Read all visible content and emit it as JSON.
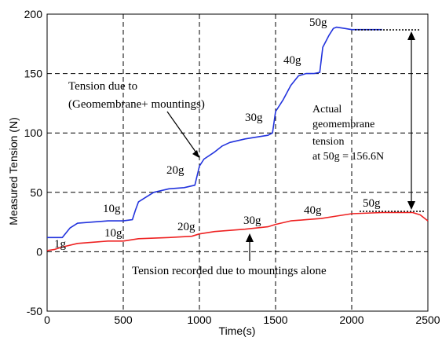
{
  "chart_data": {
    "type": "line",
    "xlabel": "Time(s)",
    "ylabel": "Measured Tension (N)",
    "xlim": [
      0,
      2500
    ],
    "ylim": [
      -50,
      200
    ],
    "xticks": [
      "0",
      "500",
      "1000",
      "1500",
      "2000",
      "2500"
    ],
    "yticks": [
      "-50",
      "0",
      "50",
      "100",
      "150",
      "200"
    ],
    "grid": "dashed",
    "series": [
      {
        "color": "#2233dd",
        "x": [
          0,
          100,
          150,
          200,
          300,
          400,
          500,
          560,
          580,
          600,
          650,
          700,
          800,
          900,
          970,
          1000,
          1030,
          1100,
          1150,
          1200,
          1300,
          1400,
          1450,
          1480,
          1500,
          1550,
          1600,
          1650,
          1700,
          1750,
          1790,
          1810,
          1850,
          1880,
          1900,
          1950,
          2000,
          2100,
          2200
        ],
        "y": [
          12,
          12,
          20,
          24,
          25,
          26,
          26,
          27,
          35,
          42,
          46,
          50,
          53,
          54,
          56,
          72,
          78,
          84,
          89,
          92,
          95,
          97,
          98,
          100,
          118,
          128,
          140,
          148,
          150,
          150,
          151,
          172,
          182,
          188,
          189,
          188,
          187,
          187,
          187
        ]
      },
      {
        "color": "#ee2222",
        "x": [
          0,
          50,
          100,
          200,
          400,
          500,
          600,
          800,
          950,
          1000,
          1100,
          1300,
          1450,
          1500,
          1600,
          1700,
          1800,
          1900,
          2000,
          2200,
          2400,
          2450,
          2500
        ],
        "y": [
          1,
          2,
          4,
          7,
          9,
          9,
          11,
          12,
          13,
          15,
          17,
          19,
          21,
          23,
          26,
          27,
          28,
          30,
          32,
          33,
          33,
          31,
          26
        ]
      }
    ],
    "step_labels_top": [
      "10g",
      "20g",
      "30g",
      "40g",
      "50g"
    ],
    "step_labels_bottom": [
      "1g",
      "10g",
      "20g",
      "30g",
      "40g",
      "50g"
    ],
    "annotations": {
      "upper_line1": "Tension due to",
      "upper_line2": "(Geomembrane+ mountings)",
      "actual_line1": "Actual",
      "actual_line2": "geomembrane",
      "actual_line3": "tension",
      "actual_line4": "at 50g = 156.6N",
      "lower": "Tension recorded due to mountings alone"
    }
  }
}
